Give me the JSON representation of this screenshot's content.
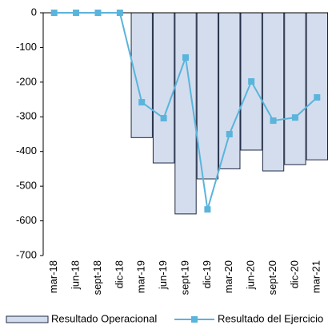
{
  "chart_data": {
    "type": "bar-line",
    "categories": [
      "mar-18",
      "jun-18",
      "sept-18",
      "dic-18",
      "mar-19",
      "jun-19",
      "sept-19",
      "dic-19",
      "mar-20",
      "jun-20",
      "sept-20",
      "dic-20",
      "mar-21"
    ],
    "series": [
      {
        "name": "Resultado Operacional",
        "type": "bar",
        "color": "#d3dded",
        "values": [
          0,
          0,
          0,
          0,
          -360,
          -433,
          -580,
          -479,
          -450,
          -396,
          -456,
          -438,
          -424
        ]
      },
      {
        "name": "Resultado del Ejercicio",
        "type": "line",
        "color": "#5ab4dc",
        "values": [
          0,
          0,
          0,
          0,
          -258,
          -304,
          -129,
          -567,
          -350,
          -198,
          -311,
          -302,
          -244
        ]
      }
    ],
    "ylim": [
      -700,
      0
    ],
    "yticks": [
      0,
      -100,
      -200,
      -300,
      -400,
      -500,
      -600,
      -700
    ]
  }
}
